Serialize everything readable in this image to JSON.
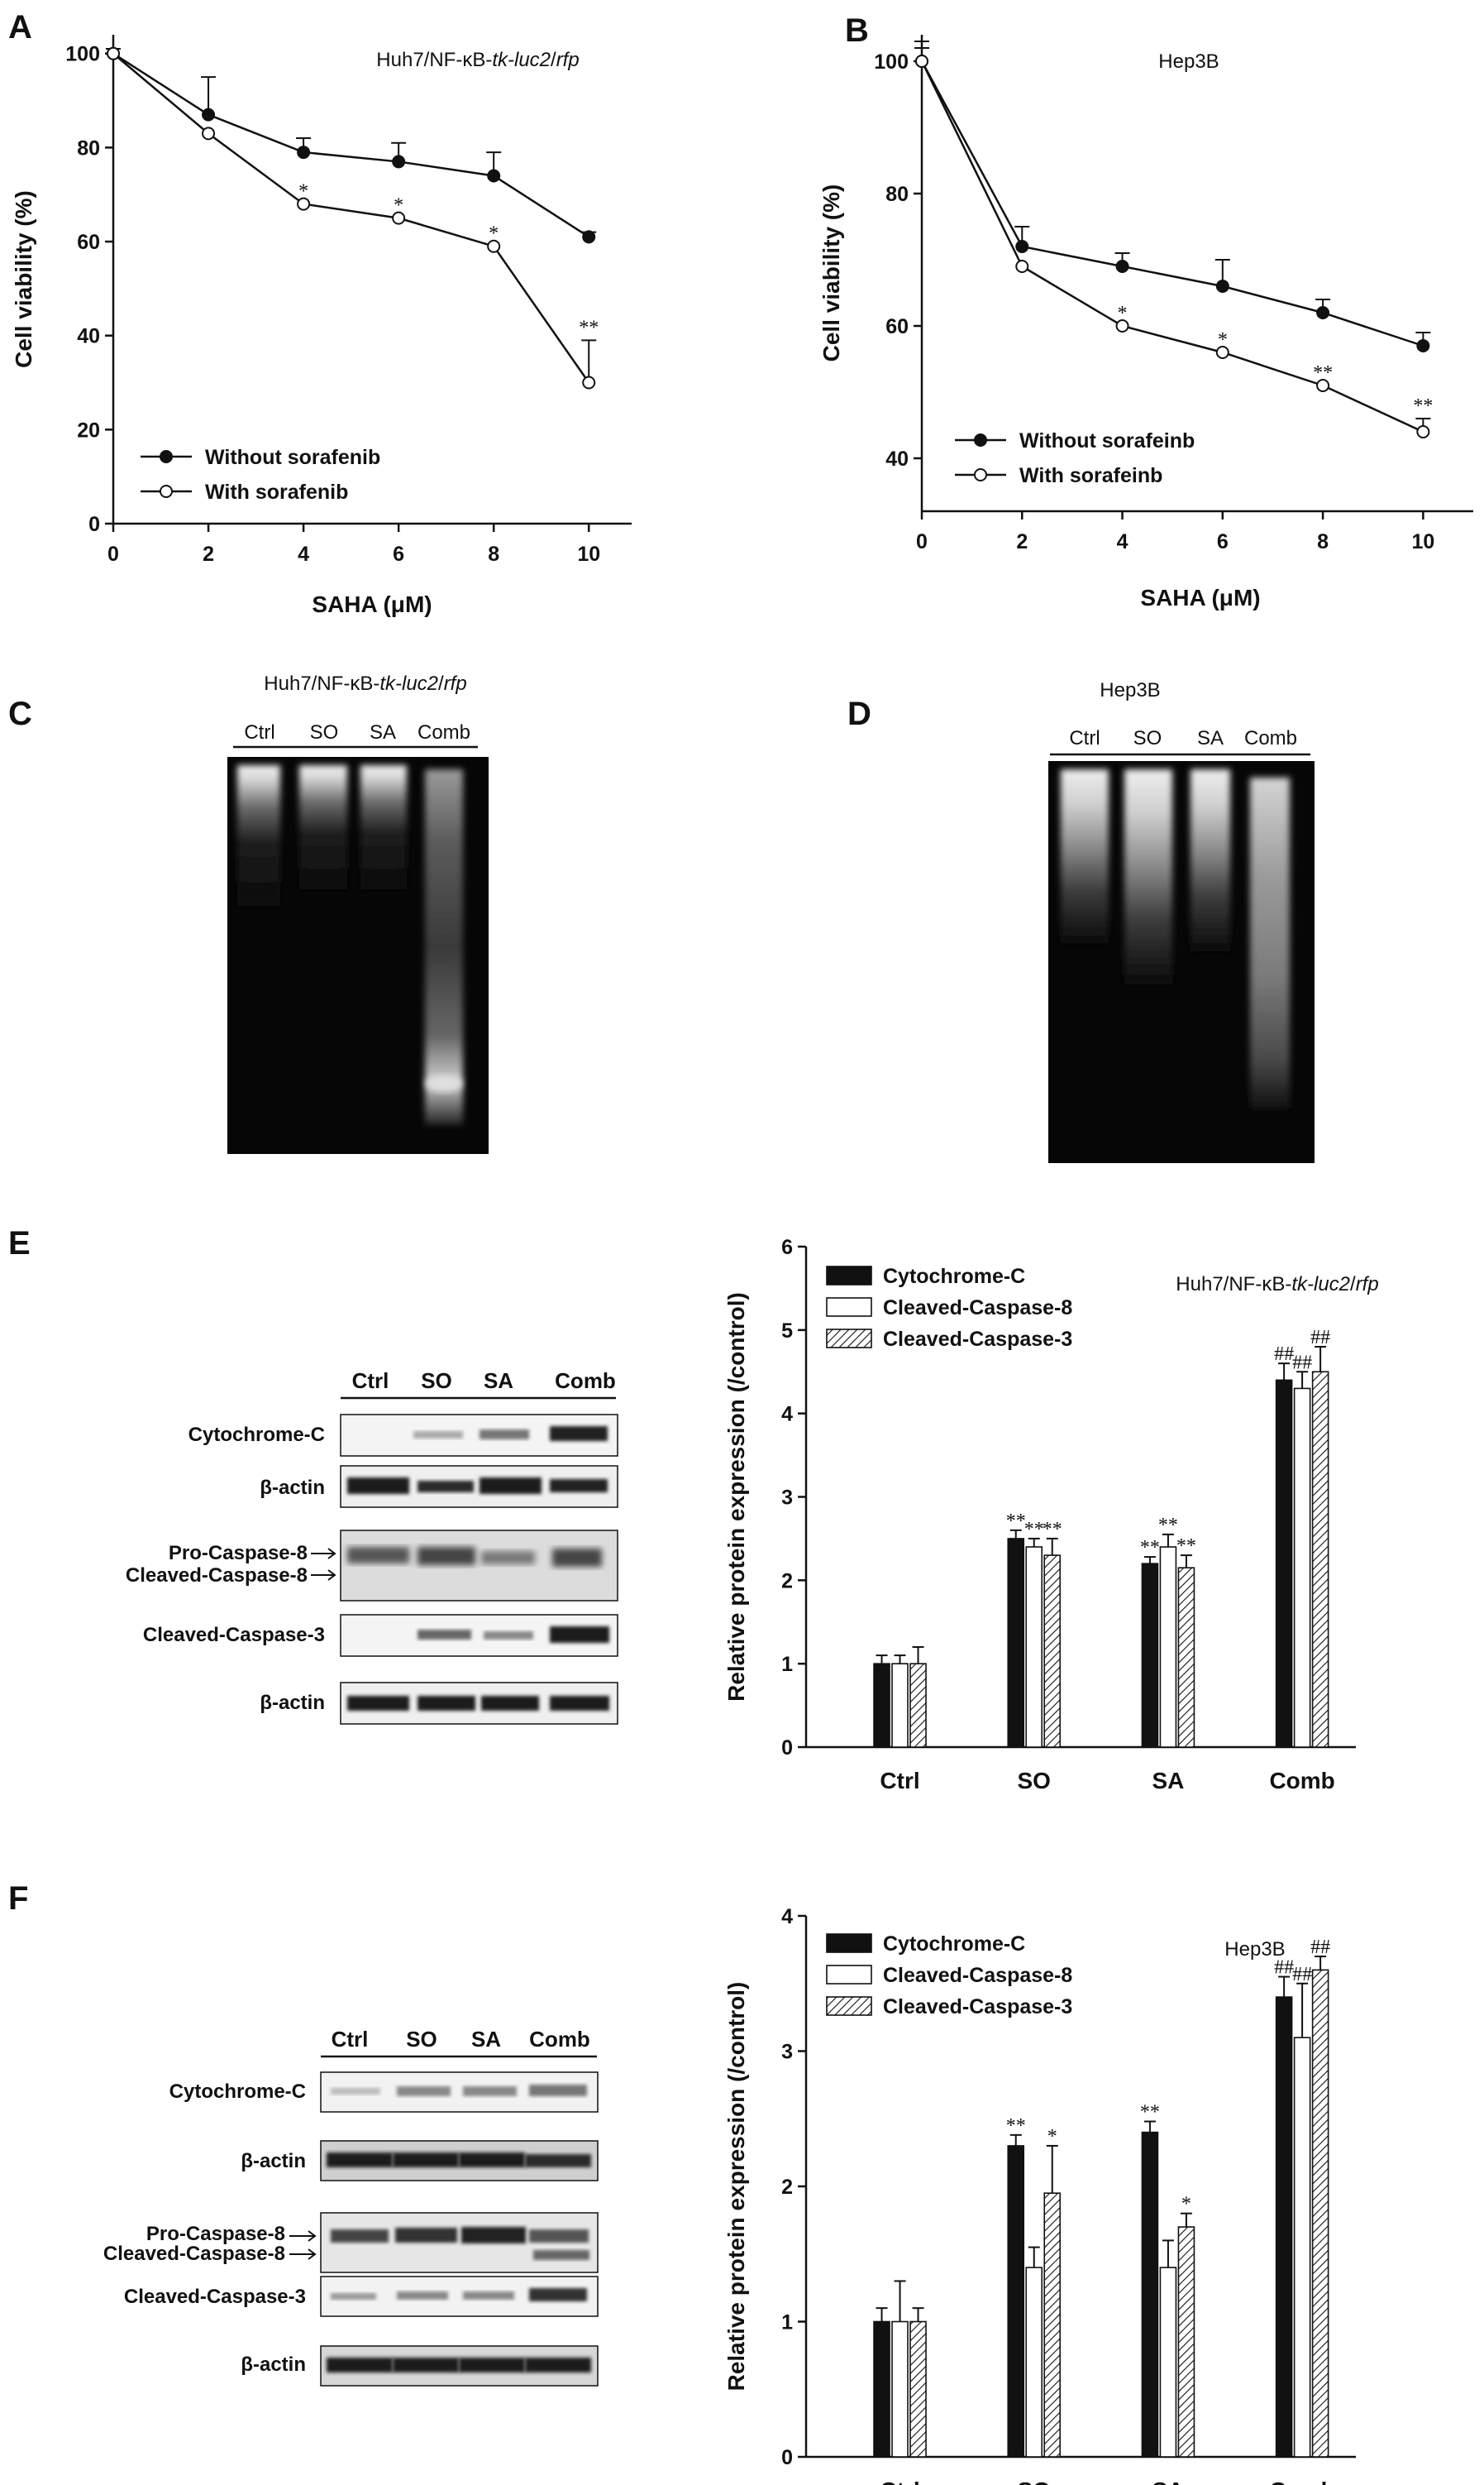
{
  "panels": {
    "A": {
      "label": "A"
    },
    "B": {
      "label": "B"
    },
    "C": {
      "label": "C",
      "title": "Huh7/NF-κB-tk-luc2/rfp",
      "lanes": [
        "Ctrl",
        "SO",
        "SA",
        "Comb"
      ]
    },
    "D": {
      "label": "D",
      "title": "Hep3B",
      "lanes": [
        "Ctrl",
        "SO",
        "SA",
        "Comb"
      ]
    },
    "E": {
      "label": "E",
      "blot_lanes": [
        "Ctrl",
        "SO",
        "SA",
        "Comb"
      ],
      "blot_rows": [
        "Cytochrome-C",
        "β-actin",
        "Pro-Caspase-8",
        "Cleaved-Caspase-8",
        "Cleaved-Caspase-3",
        "β-actin"
      ]
    },
    "F": {
      "label": "F",
      "blot_lanes": [
        "Ctrl",
        "SO",
        "SA",
        "Comb"
      ],
      "blot_rows": [
        "Cytochrome-C",
        "β-actin",
        "Pro-Caspase-8",
        "Cleaved-Caspase-8",
        "Cleaved-Caspase-3",
        "β-actin"
      ]
    }
  },
  "chart_data": [
    {
      "panel": "A",
      "type": "line",
      "title": "Huh7/NF-κB-tk-luc2/rfp",
      "xlabel": "SAHA (μM)",
      "ylabel": "Cell viability (%)",
      "x": [
        0,
        2,
        4,
        6,
        8,
        10
      ],
      "xlim": [
        0,
        10.9
      ],
      "ylim": [
        0,
        104
      ],
      "xticks": [
        "0",
        "2",
        "4",
        "6",
        "8",
        "10"
      ],
      "yticks": [
        "0",
        "20",
        "40",
        "60",
        "80",
        "100"
      ],
      "legend": "bottom-left",
      "series": [
        {
          "name": "Without sorafenib",
          "marker": "filled",
          "values": [
            100,
            87,
            79,
            77,
            74,
            61
          ],
          "err": [
            1,
            8,
            3,
            4,
            5,
            1
          ],
          "sig": [
            "",
            "",
            "",
            "",
            "",
            ""
          ]
        },
        {
          "name": "With sorafenib",
          "marker": "open",
          "values": [
            100,
            83,
            68,
            65,
            59,
            30
          ],
          "err": [
            0,
            0,
            0,
            0,
            0,
            9
          ],
          "sig": [
            "",
            "",
            "*",
            "*",
            "*",
            "**"
          ]
        }
      ]
    },
    {
      "panel": "B",
      "type": "line",
      "title": "Hep3B",
      "xlabel": "SAHA (μM)",
      "ylabel": "Cell viability (%)",
      "x": [
        0,
        2,
        4,
        6,
        8,
        10
      ],
      "xlim": [
        0,
        11
      ],
      "ylim": [
        32,
        104
      ],
      "xticks": [
        "0",
        "2",
        "4",
        "6",
        "8",
        "10"
      ],
      "yticks": [
        "40",
        "60",
        "80",
        "100"
      ],
      "legend": "bottom-left",
      "series": [
        {
          "name": "Without sorafeinb",
          "marker": "filled",
          "values": [
            100,
            72,
            69,
            66,
            62,
            57
          ],
          "err": [
            3,
            3,
            2,
            4,
            2,
            2
          ],
          "sig": [
            "",
            "",
            "",
            "",
            "",
            ""
          ]
        },
        {
          "name": "With sorafeinb",
          "marker": "open",
          "values": [
            100,
            69,
            60,
            56,
            51,
            44
          ],
          "err": [
            2,
            0,
            0,
            0,
            0,
            2
          ],
          "sig": [
            "",
            "",
            "*",
            "*",
            "**",
            "**"
          ]
        }
      ]
    },
    {
      "panel": "E",
      "type": "bar",
      "title": "Huh7/NF-κB-tk-luc2/rfp",
      "xlabel": "",
      "ylabel": "Relative protein expression (/control)",
      "categories": [
        "Ctrl",
        "SO",
        "SA",
        "Comb"
      ],
      "ylim": [
        0,
        6
      ],
      "yticks": [
        "0",
        "1",
        "2",
        "3",
        "4",
        "5",
        "6"
      ],
      "legend": "top-left",
      "series": [
        {
          "name": "Cytochrome-C",
          "fill": "solid",
          "values": [
            1.0,
            2.5,
            2.2,
            4.4
          ],
          "err": [
            0.1,
            0.1,
            0.08,
            0.2
          ],
          "sig": [
            "",
            "**",
            "**",
            "##"
          ]
        },
        {
          "name": "Cleaved-Caspase-8",
          "fill": "open",
          "values": [
            1.0,
            2.4,
            2.4,
            4.3
          ],
          "err": [
            0.1,
            0.1,
            0.15,
            0.2
          ],
          "sig": [
            "",
            "**",
            "**",
            "##"
          ]
        },
        {
          "name": "Cleaved-Caspase-3",
          "fill": "hatch",
          "values": [
            1.0,
            2.3,
            2.15,
            4.5
          ],
          "err": [
            0.2,
            0.2,
            0.15,
            0.3
          ],
          "sig": [
            "",
            "**",
            "**",
            "##"
          ]
        }
      ]
    },
    {
      "panel": "F",
      "type": "bar",
      "title": "Hep3B",
      "xlabel": "",
      "ylabel": "Relative protein expression (/control)",
      "categories": [
        "Ctrl",
        "SO",
        "SA",
        "Comb"
      ],
      "ylim": [
        0,
        4
      ],
      "yticks": [
        "0",
        "1",
        "2",
        "3",
        "4"
      ],
      "legend": "top-left",
      "series": [
        {
          "name": "Cytochrome-C",
          "fill": "solid",
          "values": [
            1.0,
            2.3,
            2.4,
            3.4
          ],
          "err": [
            0.1,
            0.08,
            0.08,
            0.15
          ],
          "sig": [
            "",
            "**",
            "**",
            "##"
          ]
        },
        {
          "name": "Cleaved-Caspase-8",
          "fill": "open",
          "values": [
            1.0,
            1.4,
            1.4,
            3.1
          ],
          "err": [
            0.3,
            0.15,
            0.2,
            0.4
          ],
          "sig": [
            "",
            "",
            "",
            "##"
          ]
        },
        {
          "name": "Cleaved-Caspase-3",
          "fill": "hatch",
          "values": [
            1.0,
            1.95,
            1.7,
            3.6
          ],
          "err": [
            0.1,
            0.35,
            0.1,
            0.1
          ],
          "sig": [
            "",
            "*",
            "*",
            "##"
          ]
        }
      ]
    }
  ]
}
